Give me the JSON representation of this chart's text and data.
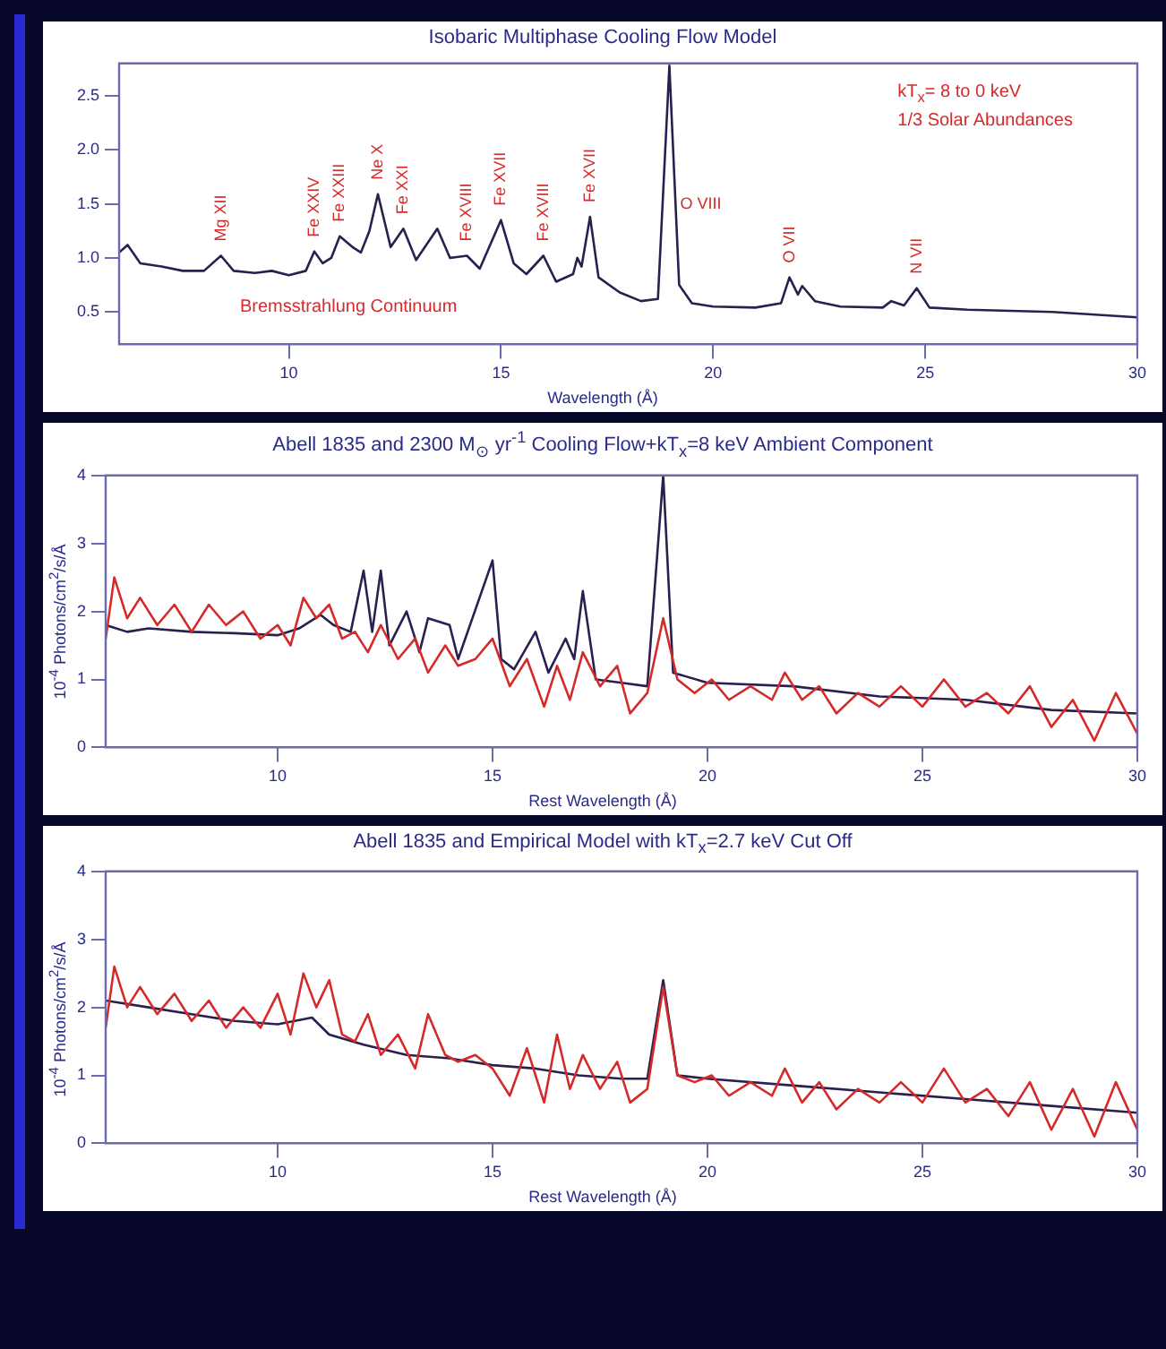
{
  "chart_data": [
    {
      "type": "line",
      "title": "Isobaric Multiphase Cooling Flow Model",
      "xlabel": "Wavelength (Å)",
      "xlim": [
        6,
        30
      ],
      "xticks": [
        10,
        15,
        20,
        25,
        30
      ],
      "ylim": [
        0.2,
        2.8
      ],
      "yticks": [
        0.5,
        {
          "value": 1,
          "label": "1.0"
        },
        1.5,
        {
          "value": 2,
          "label": "2.0"
        },
        2.5
      ],
      "grid": false,
      "legend": false,
      "annotations": [
        "Bremsstrahlung Continuum",
        "kT$_{x}$= 8 to 0 keV",
        "1/3 Solar Abundances",
        {
          "text": "Mg XII",
          "x": 8.4,
          "y": 1.02
        },
        {
          "text": "Fe XXIV",
          "x": 10.6,
          "y": 1.06
        },
        {
          "text": "Fe XXIII",
          "x": 11.2,
          "y": 1.2
        },
        {
          "text": "Ne X",
          "x": 12.1,
          "y": 1.59
        },
        {
          "text": "Fe XXI",
          "x": 12.7,
          "y": 1.27
        },
        {
          "text": "Fe XVIII",
          "x": 14.2,
          "y": 1.02
        },
        {
          "text": "Fe XVII",
          "x": 15.0,
          "y": 1.35
        },
        {
          "text": "Fe XVIII",
          "x": 16.0,
          "y": 1.02
        },
        {
          "text": "Fe XVII",
          "x": 17.1,
          "y": 1.38
        },
        {
          "text": "O VIII",
          "x": 18.97,
          "y": 1.5
        },
        {
          "text": "O VII",
          "x": 21.8,
          "y": 0.82
        },
        {
          "text": "N VII",
          "x": 24.8,
          "y": 0.72
        }
      ],
      "series": [
        {
          "color": "#2a1f4f",
          "x": [
            6.0,
            6.2,
            6.5,
            7.0,
            7.5,
            8.0,
            8.4,
            8.7,
            9.2,
            9.6,
            10.0,
            10.4,
            10.6,
            10.8,
            11.0,
            11.2,
            11.5,
            11.7,
            11.9,
            12.1,
            12.4,
            12.7,
            13.0,
            13.5,
            13.8,
            14.2,
            14.5,
            15.0,
            15.3,
            15.6,
            16.0,
            16.3,
            16.7,
            16.8,
            16.9,
            17.1,
            17.3,
            17.8,
            18.3,
            18.7,
            18.97,
            19.2,
            19.5,
            20.0,
            21.0,
            21.6,
            21.8,
            22.0,
            22.1,
            22.4,
            23.0,
            24.0,
            24.2,
            24.5,
            24.8,
            25.1,
            26.0,
            28.0,
            30.0
          ],
          "values": [
            1.05,
            1.12,
            0.95,
            0.92,
            0.88,
            0.88,
            1.02,
            0.88,
            0.86,
            0.88,
            0.84,
            0.88,
            1.06,
            0.95,
            1.0,
            1.2,
            1.1,
            1.05,
            1.25,
            1.59,
            1.1,
            1.27,
            0.98,
            1.27,
            1.0,
            1.02,
            0.9,
            1.35,
            0.95,
            0.85,
            1.02,
            0.78,
            0.85,
            1.0,
            0.92,
            1.38,
            0.82,
            0.68,
            0.6,
            0.62,
            2.78,
            0.75,
            0.58,
            0.55,
            0.54,
            0.58,
            0.82,
            0.66,
            0.74,
            0.6,
            0.55,
            0.54,
            0.6,
            0.56,
            0.72,
            0.54,
            0.52,
            0.5,
            0.45
          ]
        }
      ]
    },
    {
      "type": "line",
      "title": "Abell 1835 and 2300 M$_{⊙}$ yr$^{-1}$ Cooling Flow+kT$_{x}$=8 keV Ambient Component",
      "xlabel": "Rest Wavelength (Å)",
      "ylabel": "10$^{-4}$ Photons/cm$^{2}$/s/Å",
      "xlim": [
        6,
        30
      ],
      "xticks": [
        10,
        15,
        20,
        25,
        30
      ],
      "ylim": [
        0,
        4
      ],
      "yticks": [
        0,
        1,
        2,
        3,
        4
      ],
      "grid": false,
      "legend": false,
      "series": [
        {
          "color": "#d42a2a",
          "x": [
            6.0,
            6.2,
            6.5,
            6.8,
            7.2,
            7.6,
            8.0,
            8.4,
            8.8,
            9.2,
            9.6,
            10.0,
            10.3,
            10.6,
            10.9,
            11.2,
            11.5,
            11.8,
            12.1,
            12.4,
            12.8,
            13.2,
            13.5,
            13.9,
            14.2,
            14.6,
            15.0,
            15.4,
            15.8,
            16.2,
            16.5,
            16.8,
            17.1,
            17.5,
            17.9,
            18.2,
            18.6,
            18.97,
            19.3,
            19.7,
            20.1,
            20.5,
            21.0,
            21.5,
            21.8,
            22.2,
            22.6,
            23.0,
            23.5,
            24.0,
            24.5,
            25.0,
            25.5,
            26.0,
            26.5,
            27.0,
            27.5,
            28.0,
            28.5,
            29.0,
            29.5,
            30.0
          ],
          "values": [
            1.6,
            2.5,
            1.9,
            2.2,
            1.8,
            2.1,
            1.7,
            2.1,
            1.8,
            2.0,
            1.6,
            1.8,
            1.5,
            2.2,
            1.9,
            2.1,
            1.6,
            1.7,
            1.4,
            1.8,
            1.3,
            1.6,
            1.1,
            1.5,
            1.2,
            1.3,
            1.6,
            0.9,
            1.3,
            0.6,
            1.2,
            0.7,
            1.4,
            0.9,
            1.2,
            0.5,
            0.8,
            1.9,
            1.0,
            0.8,
            1.0,
            0.7,
            0.9,
            0.7,
            1.1,
            0.7,
            0.9,
            0.5,
            0.8,
            0.6,
            0.9,
            0.6,
            1.0,
            0.6,
            0.8,
            0.5,
            0.9,
            0.3,
            0.7,
            0.1,
            0.8,
            0.2
          ]
        },
        {
          "color": "#2a1f4f",
          "x": [
            6.0,
            6.5,
            7.0,
            8.0,
            9.0,
            10.0,
            10.5,
            11.0,
            11.3,
            11.7,
            12.0,
            12.2,
            12.4,
            12.6,
            13.0,
            13.3,
            13.5,
            14.0,
            14.2,
            15.0,
            15.2,
            15.5,
            16.0,
            16.3,
            16.7,
            16.9,
            17.1,
            17.4,
            18.0,
            18.6,
            18.97,
            19.2,
            20.0,
            22.0,
            24.0,
            26.0,
            28.0,
            30.0
          ],
          "values": [
            1.8,
            1.7,
            1.75,
            1.7,
            1.68,
            1.65,
            1.75,
            1.95,
            1.8,
            1.7,
            2.6,
            1.7,
            2.6,
            1.5,
            2.0,
            1.4,
            1.9,
            1.8,
            1.3,
            2.75,
            1.3,
            1.15,
            1.7,
            1.1,
            1.6,
            1.3,
            2.3,
            1.0,
            0.95,
            0.9,
            4.0,
            1.1,
            0.95,
            0.9,
            0.75,
            0.7,
            0.55,
            0.5
          ]
        }
      ]
    },
    {
      "type": "line",
      "title": "Abell 1835 and Empirical Model with kT$_{x}$=2.7 keV Cut Off",
      "xlabel": "Rest Wavelength (Å)",
      "ylabel": "10$^{-4}$ Photons/cm$^{2}$/s/Å",
      "xlim": [
        6,
        30
      ],
      "xticks": [
        10,
        15,
        20,
        25,
        30
      ],
      "ylim": [
        0,
        4
      ],
      "yticks": [
        0,
        1,
        2,
        3,
        4
      ],
      "grid": false,
      "legend": false,
      "series": [
        {
          "color": "#d42a2a",
          "x": [
            6.0,
            6.2,
            6.5,
            6.8,
            7.2,
            7.6,
            8.0,
            8.4,
            8.8,
            9.2,
            9.6,
            10.0,
            10.3,
            10.6,
            10.9,
            11.2,
            11.5,
            11.8,
            12.1,
            12.4,
            12.8,
            13.2,
            13.5,
            13.9,
            14.2,
            14.6,
            15.0,
            15.4,
            15.8,
            16.2,
            16.5,
            16.8,
            17.1,
            17.5,
            17.9,
            18.2,
            18.6,
            18.97,
            19.3,
            19.7,
            20.1,
            20.5,
            21.0,
            21.5,
            21.8,
            22.2,
            22.6,
            23.0,
            23.5,
            24.0,
            24.5,
            25.0,
            25.5,
            26.0,
            26.5,
            27.0,
            27.5,
            28.0,
            28.5,
            29.0,
            29.5,
            30.0
          ],
          "values": [
            1.7,
            2.6,
            2.0,
            2.3,
            1.9,
            2.2,
            1.8,
            2.1,
            1.7,
            2.0,
            1.7,
            2.2,
            1.6,
            2.5,
            2.0,
            2.4,
            1.6,
            1.5,
            1.9,
            1.3,
            1.6,
            1.1,
            1.9,
            1.3,
            1.2,
            1.3,
            1.1,
            0.7,
            1.4,
            0.6,
            1.6,
            0.8,
            1.3,
            0.8,
            1.2,
            0.6,
            0.8,
            2.3,
            1.0,
            0.9,
            1.0,
            0.7,
            0.9,
            0.7,
            1.1,
            0.6,
            0.9,
            0.5,
            0.8,
            0.6,
            0.9,
            0.6,
            1.1,
            0.6,
            0.8,
            0.4,
            0.9,
            0.2,
            0.8,
            0.1,
            0.9,
            0.2
          ]
        },
        {
          "color": "#2a1f4f",
          "x": [
            6.0,
            7.0,
            8.0,
            9.0,
            10.0,
            10.8,
            11.2,
            12.0,
            13.0,
            14.0,
            15.0,
            16.0,
            17.0,
            18.0,
            18.6,
            18.97,
            19.3,
            20.0,
            22.0,
            24.0,
            26.0,
            28.0,
            30.0
          ],
          "values": [
            2.1,
            2.0,
            1.9,
            1.8,
            1.75,
            1.85,
            1.6,
            1.45,
            1.3,
            1.25,
            1.15,
            1.1,
            1.0,
            0.95,
            0.95,
            2.4,
            1.0,
            0.95,
            0.85,
            0.75,
            0.65,
            0.55,
            0.45
          ]
        }
      ]
    }
  ]
}
